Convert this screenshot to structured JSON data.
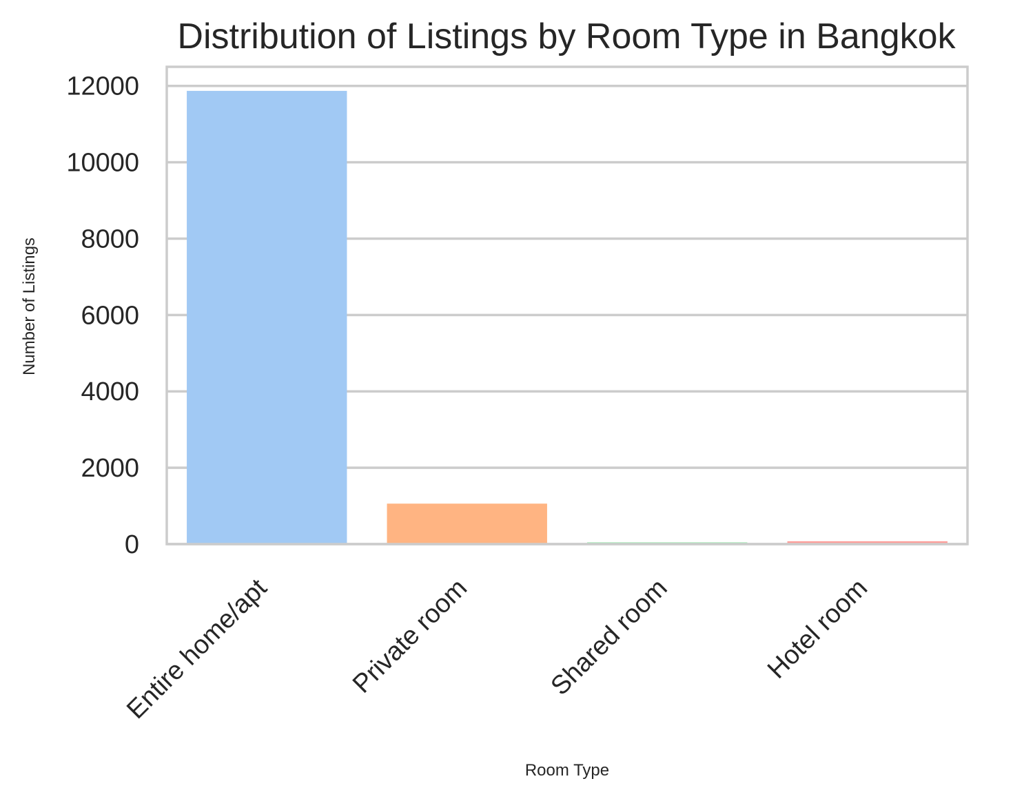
{
  "chart_data": {
    "type": "bar",
    "title": "Distribution of Listings by Room Type in Bangkok",
    "xlabel": "Room Type",
    "ylabel": "Number of Listings",
    "categories": [
      "Entire home/apt",
      "Private room",
      "Shared room",
      "Hotel room"
    ],
    "values": [
      11870,
      1060,
      45,
      75
    ],
    "colors": [
      "#a1c9f4",
      "#ffb482",
      "#8de5a1",
      "#ff9f9b"
    ],
    "ylim": [
      0,
      12500
    ],
    "yticks": [
      "0",
      "2000",
      "4000",
      "6000",
      "8000",
      "10000",
      "12000"
    ],
    "grid": true,
    "legend": "none"
  }
}
